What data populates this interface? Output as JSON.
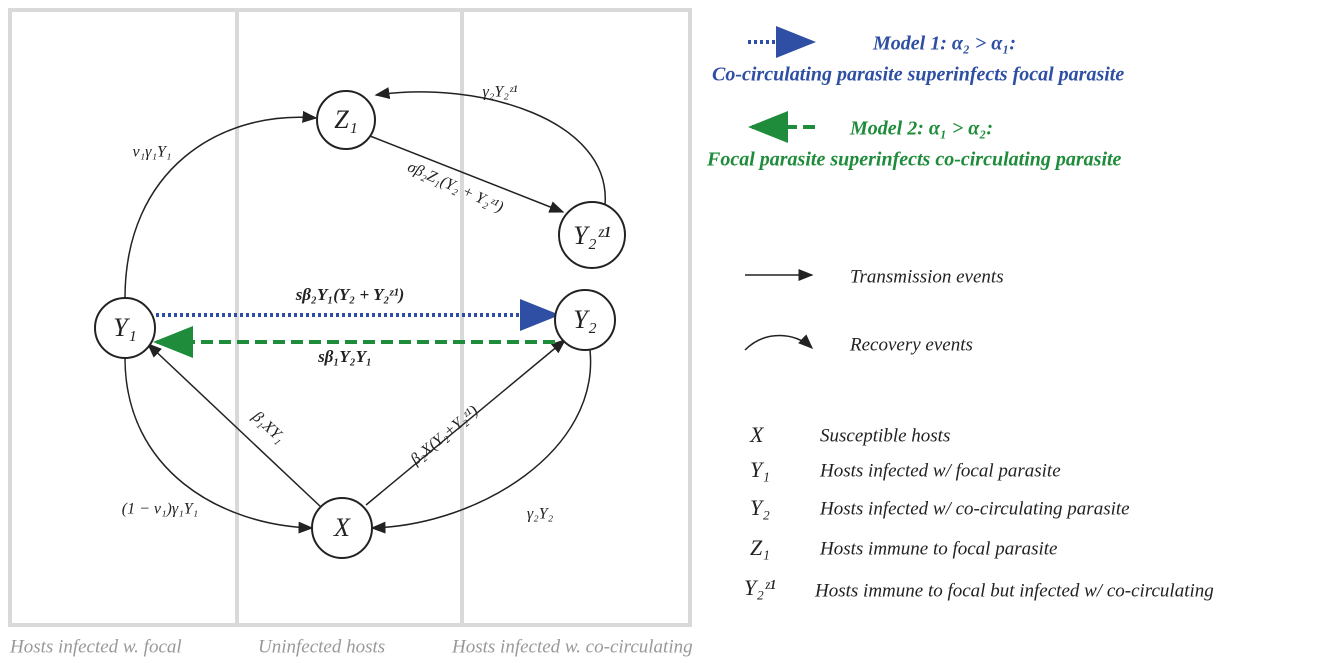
{
  "nodes": [
    {
      "label": "Z₁"
    },
    {
      "label": "Y₂ᶻ¹"
    },
    {
      "label": "Y₁"
    },
    {
      "label": "Y₂"
    },
    {
      "label": "X"
    }
  ],
  "edges": [
    {
      "label": "ν₁γ₁Y₁"
    },
    {
      "label": "γ₂Y₂ᶻ¹"
    },
    {
      "label": "σβ₂Z₁(Y₂ + Y₂ᶻ¹)"
    },
    {
      "label": "sβ₂Y₁(Y₂ + Y₂ᶻ¹)"
    },
    {
      "label": "sβ₁Y₂Y₁"
    },
    {
      "label": "β₁XY₁"
    },
    {
      "label": "β₂X(Y₂+Y₂ᶻ¹)"
    },
    {
      "label": "(1 − ν₁)γ₁Y₁"
    },
    {
      "label": "γ₂Y₂"
    }
  ],
  "panels": [
    "Hosts infected w. focal",
    "Uninfected hosts",
    "Hosts infected w. co-circulating"
  ],
  "legend": {
    "models": [
      {
        "title": "Model 1: α₂ > α₁:",
        "text": "Co-circulating parasite superinfects focal parasite"
      },
      {
        "title": "Model 2: α₁ > α₂:",
        "text": "Focal parasite superinfects co-circulating parasite"
      }
    ],
    "arrows": [
      "Transmission events",
      "Recovery events"
    ],
    "symbols": [
      {
        "symbol": "X",
        "text": "Susceptible hosts"
      },
      {
        "symbol": "Y₁",
        "text": "Hosts infected w/ focal parasite"
      },
      {
        "symbol": "Y₂",
        "text": "Hosts infected w/ co-circulating parasite"
      },
      {
        "symbol": "Z₁",
        "text": "Hosts immune to focal parasite"
      },
      {
        "symbol": "Y₂ᶻ¹",
        "text": "Hosts immune to focal but infected w/ co-circulating"
      }
    ]
  }
}
